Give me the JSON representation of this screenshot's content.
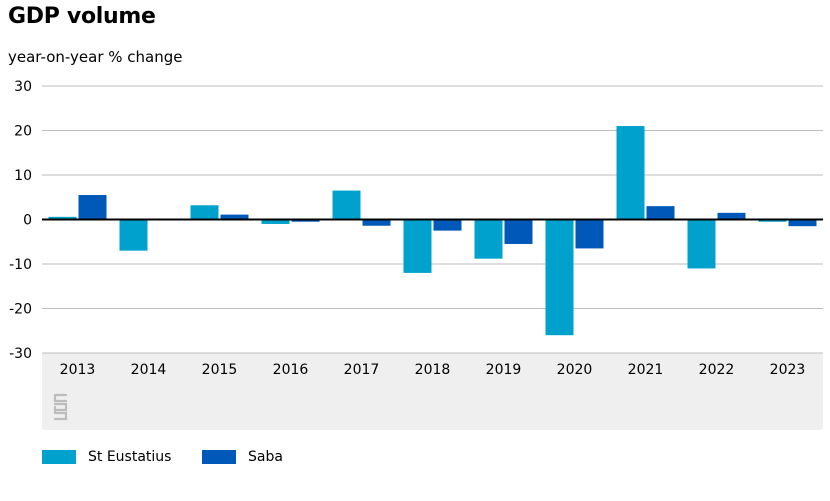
{
  "title": "GDP volume",
  "subtitle": "year-on-year % change",
  "colors": {
    "st_eustatius": "#00a1cd",
    "saba": "#0058b8",
    "plot_bg_bottom": "#efefef",
    "grid": "#bdbdbd"
  },
  "logo": "cbs",
  "chart_data": {
    "type": "bar",
    "categories": [
      "2013",
      "2014",
      "2015",
      "2016",
      "2017",
      "2018",
      "2019",
      "2020",
      "2021",
      "2022",
      "2023"
    ],
    "series": [
      {
        "name": "St Eustatius",
        "color": "#00a1cd",
        "values": [
          0.6,
          -7.0,
          3.2,
          -1.0,
          6.5,
          -12.0,
          -8.8,
          -26.0,
          21.0,
          -11.0,
          -0.5
        ]
      },
      {
        "name": "Saba",
        "color": "#0058b8",
        "values": [
          5.5,
          0.0,
          1.1,
          -0.5,
          -1.4,
          -2.5,
          -5.5,
          -6.5,
          3.0,
          1.5,
          -1.5
        ]
      }
    ],
    "ylabel": "year-on-year % change",
    "ylim": [
      -30,
      30
    ],
    "yticks": [
      "30",
      "20",
      "10",
      "0",
      "-10",
      "-20",
      "-30"
    ],
    "grid": true,
    "legend_position": "bottom-left"
  }
}
